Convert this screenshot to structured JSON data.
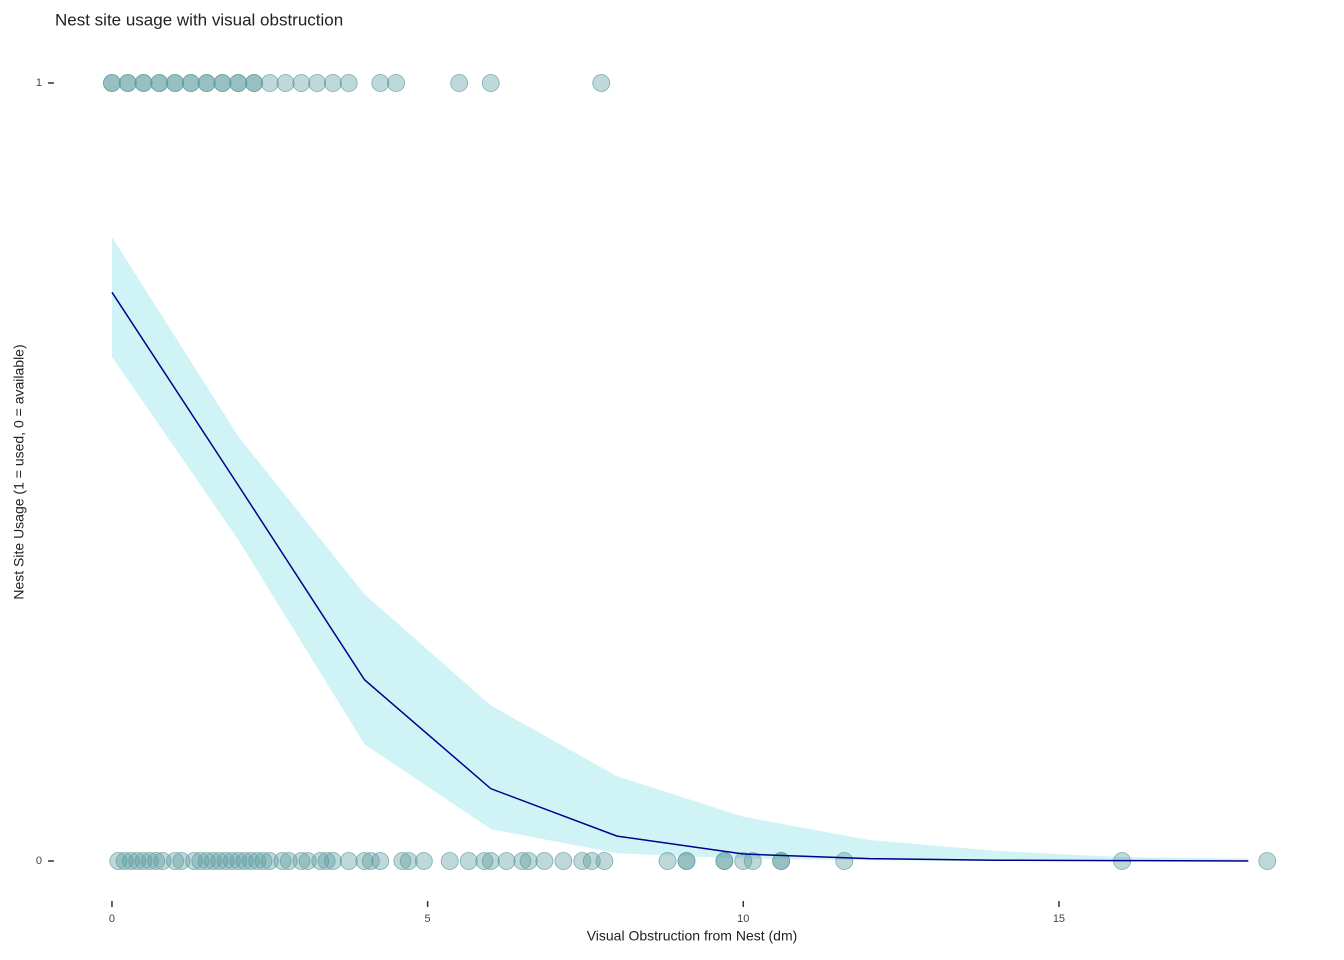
{
  "chart_data": {
    "type": "scatter",
    "title": "Nest site usage with visual obstruction",
    "x_label": "Visual Obstruction from Nest (dm)",
    "y_label": "Nest Site Usage (1 = used, 0 = available)",
    "xlim": [
      -0.5,
      18.5
    ],
    "ylim": [
      -0.05,
      1.05
    ],
    "xticks": [
      0,
      5,
      10,
      15
    ],
    "yticks": [
      0,
      1
    ],
    "point_color": "#5f9ea0",
    "line_color": "#00008b",
    "band_color": "#d0f4f6",
    "points": {
      "x": [
        0,
        0,
        0.25,
        0.25,
        0.5,
        0.5,
        0.75,
        0.75,
        1.0,
        1.0,
        1.25,
        1.25,
        1.5,
        1.5,
        1.75,
        1.75,
        2.0,
        2.0,
        2.25,
        2.25,
        2.5,
        2.75,
        3.0,
        3.25,
        3.5,
        3.75,
        4.25,
        4.5,
        5.5,
        6.0,
        7.75,
        0.1,
        0.2,
        0.3,
        0.4,
        0.5,
        0.6,
        0.7,
        0.8,
        1.0,
        1.1,
        1.3,
        1.4,
        1.5,
        1.6,
        1.7,
        1.8,
        1.9,
        2.0,
        2.1,
        2.2,
        2.3,
        2.4,
        2.5,
        2.7,
        2.8,
        3.0,
        3.1,
        3.3,
        3.4,
        3.5,
        3.75,
        4.0,
        4.1,
        4.25,
        4.6,
        4.7,
        4.94,
        5.35,
        5.65,
        5.9,
        6.0,
        6.25,
        6.5,
        6.6,
        6.85,
        7.15,
        7.45,
        7.6,
        7.8,
        8.8,
        9.1,
        9.1,
        9.7,
        9.7,
        10.0,
        10.15,
        10.6,
        10.6,
        11.6,
        16.0,
        18.3
      ],
      "y": [
        1,
        1,
        1,
        1,
        1,
        1,
        1,
        1,
        1,
        1,
        1,
        1,
        1,
        1,
        1,
        1,
        1,
        1,
        1,
        1,
        1,
        1,
        1,
        1,
        1,
        1,
        1,
        1,
        1,
        1,
        1,
        0,
        0,
        0,
        0,
        0,
        0,
        0,
        0,
        0,
        0,
        0,
        0,
        0,
        0,
        0,
        0,
        0,
        0,
        0,
        0,
        0,
        0,
        0,
        0,
        0,
        0,
        0,
        0,
        0,
        0,
        0,
        0,
        0,
        0,
        0,
        0,
        0,
        0,
        0,
        0,
        0,
        0,
        0,
        0,
        0,
        0,
        0,
        0,
        0,
        0,
        0,
        0,
        0,
        0,
        0,
        0,
        0,
        0,
        0,
        0,
        0
      ]
    },
    "fit": {
      "x": [
        0,
        2,
        4,
        6,
        8,
        10,
        12,
        14,
        16,
        18
      ],
      "values": [
        0.731,
        0.483,
        0.233,
        0.093,
        0.032,
        0.009,
        0.003,
        0.001,
        0.0005,
        0
      ],
      "upper": [
        0.802,
        0.546,
        0.343,
        0.2,
        0.109,
        0.057,
        0.027,
        0.013,
        0.005,
        0.003
      ],
      "lower": [
        0.648,
        0.413,
        0.15,
        0.041,
        0.01,
        0.003,
        0.001,
        0,
        0,
        0
      ]
    }
  }
}
